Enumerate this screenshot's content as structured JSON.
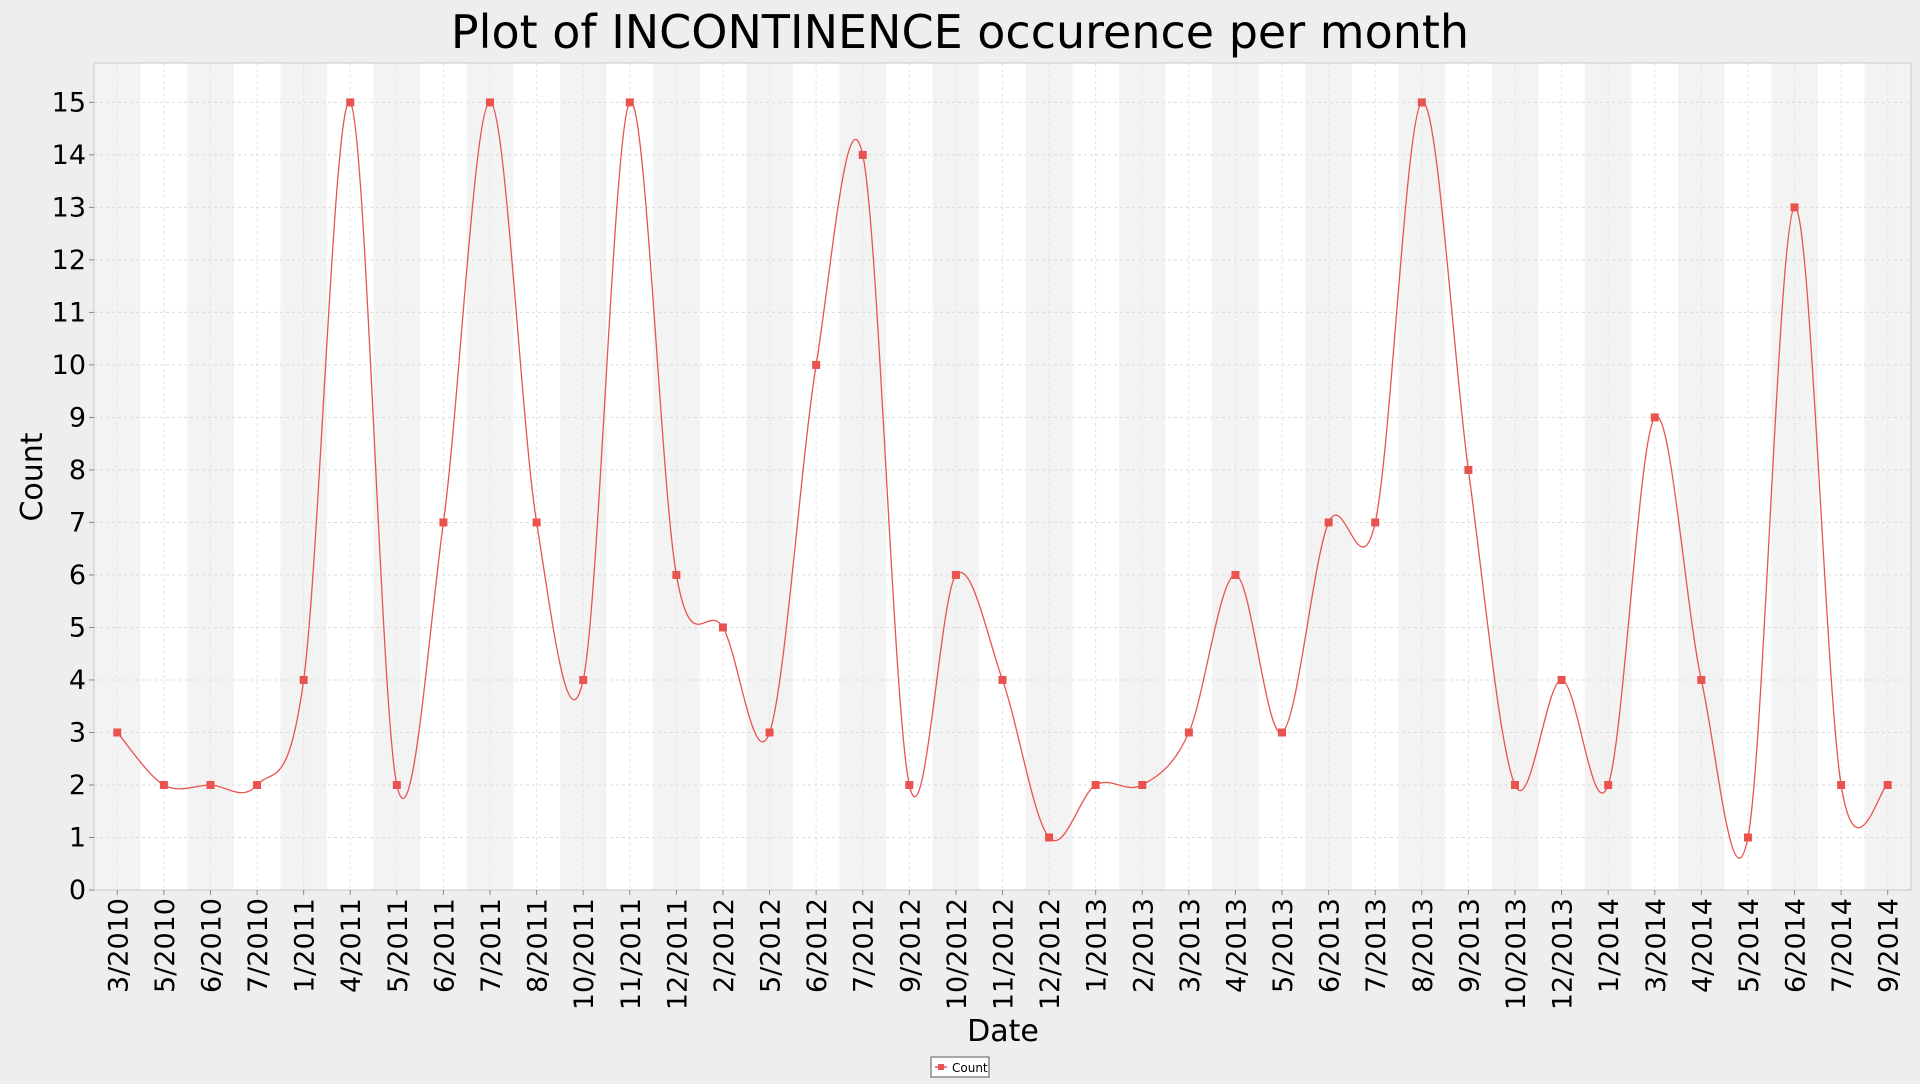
{
  "chart_data": {
    "type": "line",
    "title": "Plot of INCONTINENCE occurence per month",
    "xlabel": "Date",
    "ylabel": "Count",
    "ylim": [
      0,
      15.75
    ],
    "yticks": [
      0,
      1,
      2,
      3,
      4,
      5,
      6,
      7,
      8,
      9,
      10,
      11,
      12,
      13,
      14,
      15
    ],
    "grid": true,
    "smoothed": true,
    "legend": {
      "placement": "bottom-center",
      "marker": "square"
    },
    "colors": {
      "series": "#e8534f",
      "band": "#f3f3f3",
      "plot_bg": "#ffffff",
      "outer_bg": "#eeeeee",
      "grid": "#dcdcdc"
    },
    "categories": [
      "3/2010",
      "5/2010",
      "6/2010",
      "7/2010",
      "1/2011",
      "4/2011",
      "5/2011",
      "6/2011",
      "7/2011",
      "8/2011",
      "10/2011",
      "11/2011",
      "12/2011",
      "2/2012",
      "5/2012",
      "6/2012",
      "7/2012",
      "9/2012",
      "10/2012",
      "11/2012",
      "12/2012",
      "1/2013",
      "2/2013",
      "3/2013",
      "4/2013",
      "5/2013",
      "6/2013",
      "7/2013",
      "8/2013",
      "9/2013",
      "10/2013",
      "12/2013",
      "1/2014",
      "3/2014",
      "4/2014",
      "5/2014",
      "6/2014",
      "7/2014",
      "9/2014"
    ],
    "series": [
      {
        "name": "Count",
        "values": [
          3,
          2,
          2,
          2,
          4,
          15,
          2,
          7,
          15,
          7,
          4,
          15,
          6,
          5,
          3,
          10,
          14,
          2,
          6,
          4,
          1,
          2,
          2,
          3,
          6,
          3,
          7,
          7,
          15,
          8,
          2,
          4,
          2,
          9,
          4,
          1,
          13,
          2,
          2
        ]
      }
    ]
  }
}
